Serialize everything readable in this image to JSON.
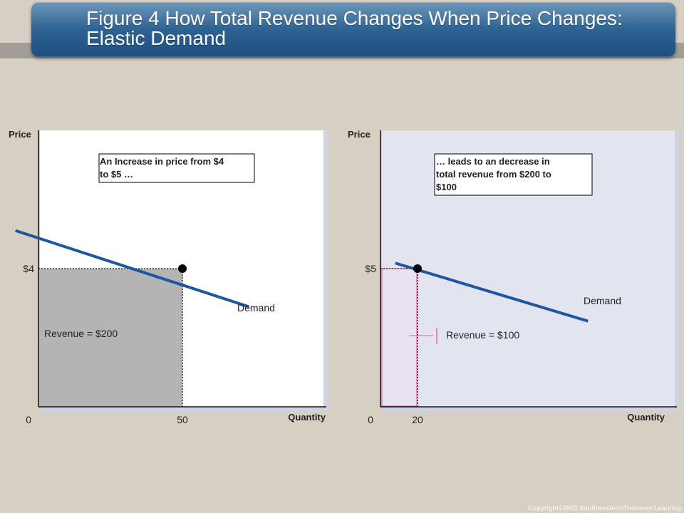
{
  "title": "Figure 4 How Total Revenue Changes When Price Changes: Elastic Demand",
  "copyright": "Copyright©2003  Southwestern/Thomson Learning",
  "colors": {
    "demand_line": "#1f56a2",
    "revenue_left_fill": "#b4b4b4",
    "revenue_right_fill": "#e9e2f0",
    "revenue_right_stroke": "#e64b9a",
    "panel_left_bg": "#ffffff",
    "panel_right_bg": "#e2e5ef"
  },
  "chart_data": [
    {
      "type": "line",
      "ylabel": "Price",
      "xlabel": "Quantity",
      "origin_label": "0",
      "x_tick": {
        "value": 50,
        "label": "50"
      },
      "y_tick": {
        "value": 4,
        "label": "$4"
      },
      "series": [
        {
          "name": "Demand",
          "x": [
            -8,
            73
          ],
          "y": [
            5.1,
            2.9
          ]
        }
      ],
      "point": {
        "x": 50,
        "y": 4
      },
      "revenue_label": "Revenue  = $200",
      "annotation": [
        "An Increase in price from $4",
        " to $5 …"
      ],
      "xlim": [
        0,
        100
      ],
      "ylim": [
        0,
        8
      ]
    },
    {
      "type": "line",
      "ylabel": "Price",
      "xlabel": "Quantity",
      "origin_label": "0",
      "x_tick": {
        "value": 20,
        "label": "20"
      },
      "y_tick": {
        "value": 5,
        "label": "$5"
      },
      "series": [
        {
          "name": "Demand",
          "x": [
            8,
            112
          ],
          "y": [
            5.2,
            3.1
          ]
        }
      ],
      "point": {
        "x": 20,
        "y": 5
      },
      "revenue_label": "Revenue  = $100",
      "annotation": [
        "… leads to an decrease in",
        "total revenue from $200 to",
        "$100"
      ],
      "xlim": [
        0,
        160
      ],
      "ylim": [
        0,
        10
      ]
    }
  ]
}
